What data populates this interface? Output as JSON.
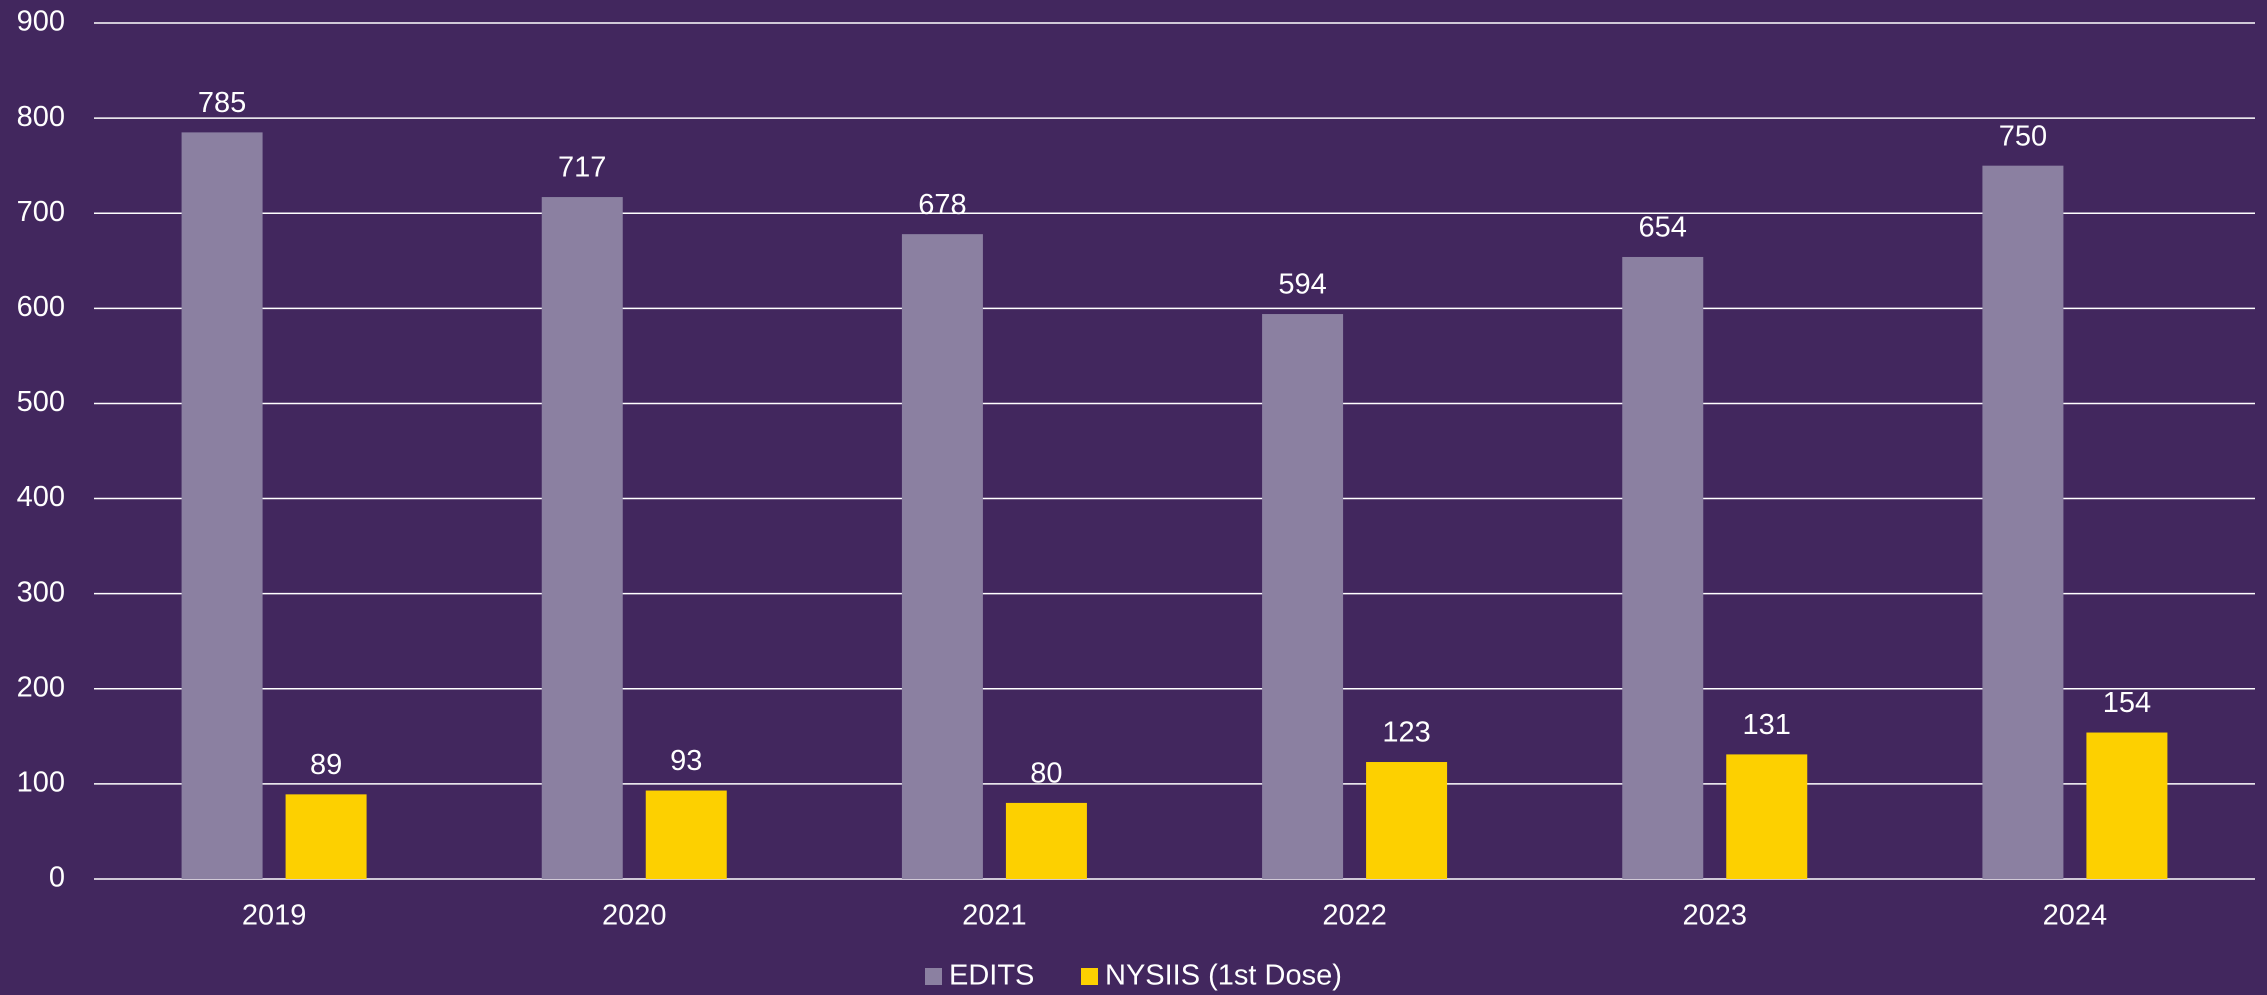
{
  "chart_data": {
    "type": "bar",
    "categories": [
      "2019",
      "2020",
      "2021",
      "2022",
      "2023",
      "2024"
    ],
    "series": [
      {
        "name": "EDITS",
        "color": "#8b80a1",
        "values": [
          785,
          717,
          678,
          594,
          654,
          750
        ]
      },
      {
        "name": "NYSIIS (1st Dose)",
        "color": "#fdd000",
        "values": [
          89,
          93,
          80,
          123,
          131,
          154
        ]
      }
    ],
    "ylim": [
      0,
      900
    ],
    "yticks": [
      0,
      100,
      200,
      300,
      400,
      500,
      600,
      700,
      800,
      900
    ],
    "grid": true,
    "legend": "bottom"
  }
}
